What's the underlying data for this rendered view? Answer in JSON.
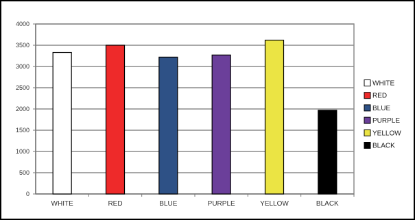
{
  "chart_data": {
    "type": "bar",
    "title": "",
    "xlabel": "",
    "ylabel": "",
    "categories": [
      "WHITE",
      "RED",
      "BLUE",
      "PURPLE",
      "YELLOW",
      "BLACK"
    ],
    "values": [
      3330,
      3500,
      3220,
      3270,
      3620,
      1970
    ],
    "colors": [
      "#ffffff",
      "#ee2a2a",
      "#2e5186",
      "#6b3f9a",
      "#ebe444",
      "#000000"
    ],
    "ylim": [
      0,
      4000
    ],
    "yticks": [
      0,
      500,
      1000,
      1500,
      2000,
      2500,
      3000,
      3500,
      4000
    ],
    "grid": true,
    "plot_background": "#ffffff",
    "legend": {
      "position": "right",
      "entries": [
        "WHITE",
        "RED",
        "BLUE",
        "PURPLE",
        "YELLOW",
        "BLACK"
      ]
    }
  }
}
